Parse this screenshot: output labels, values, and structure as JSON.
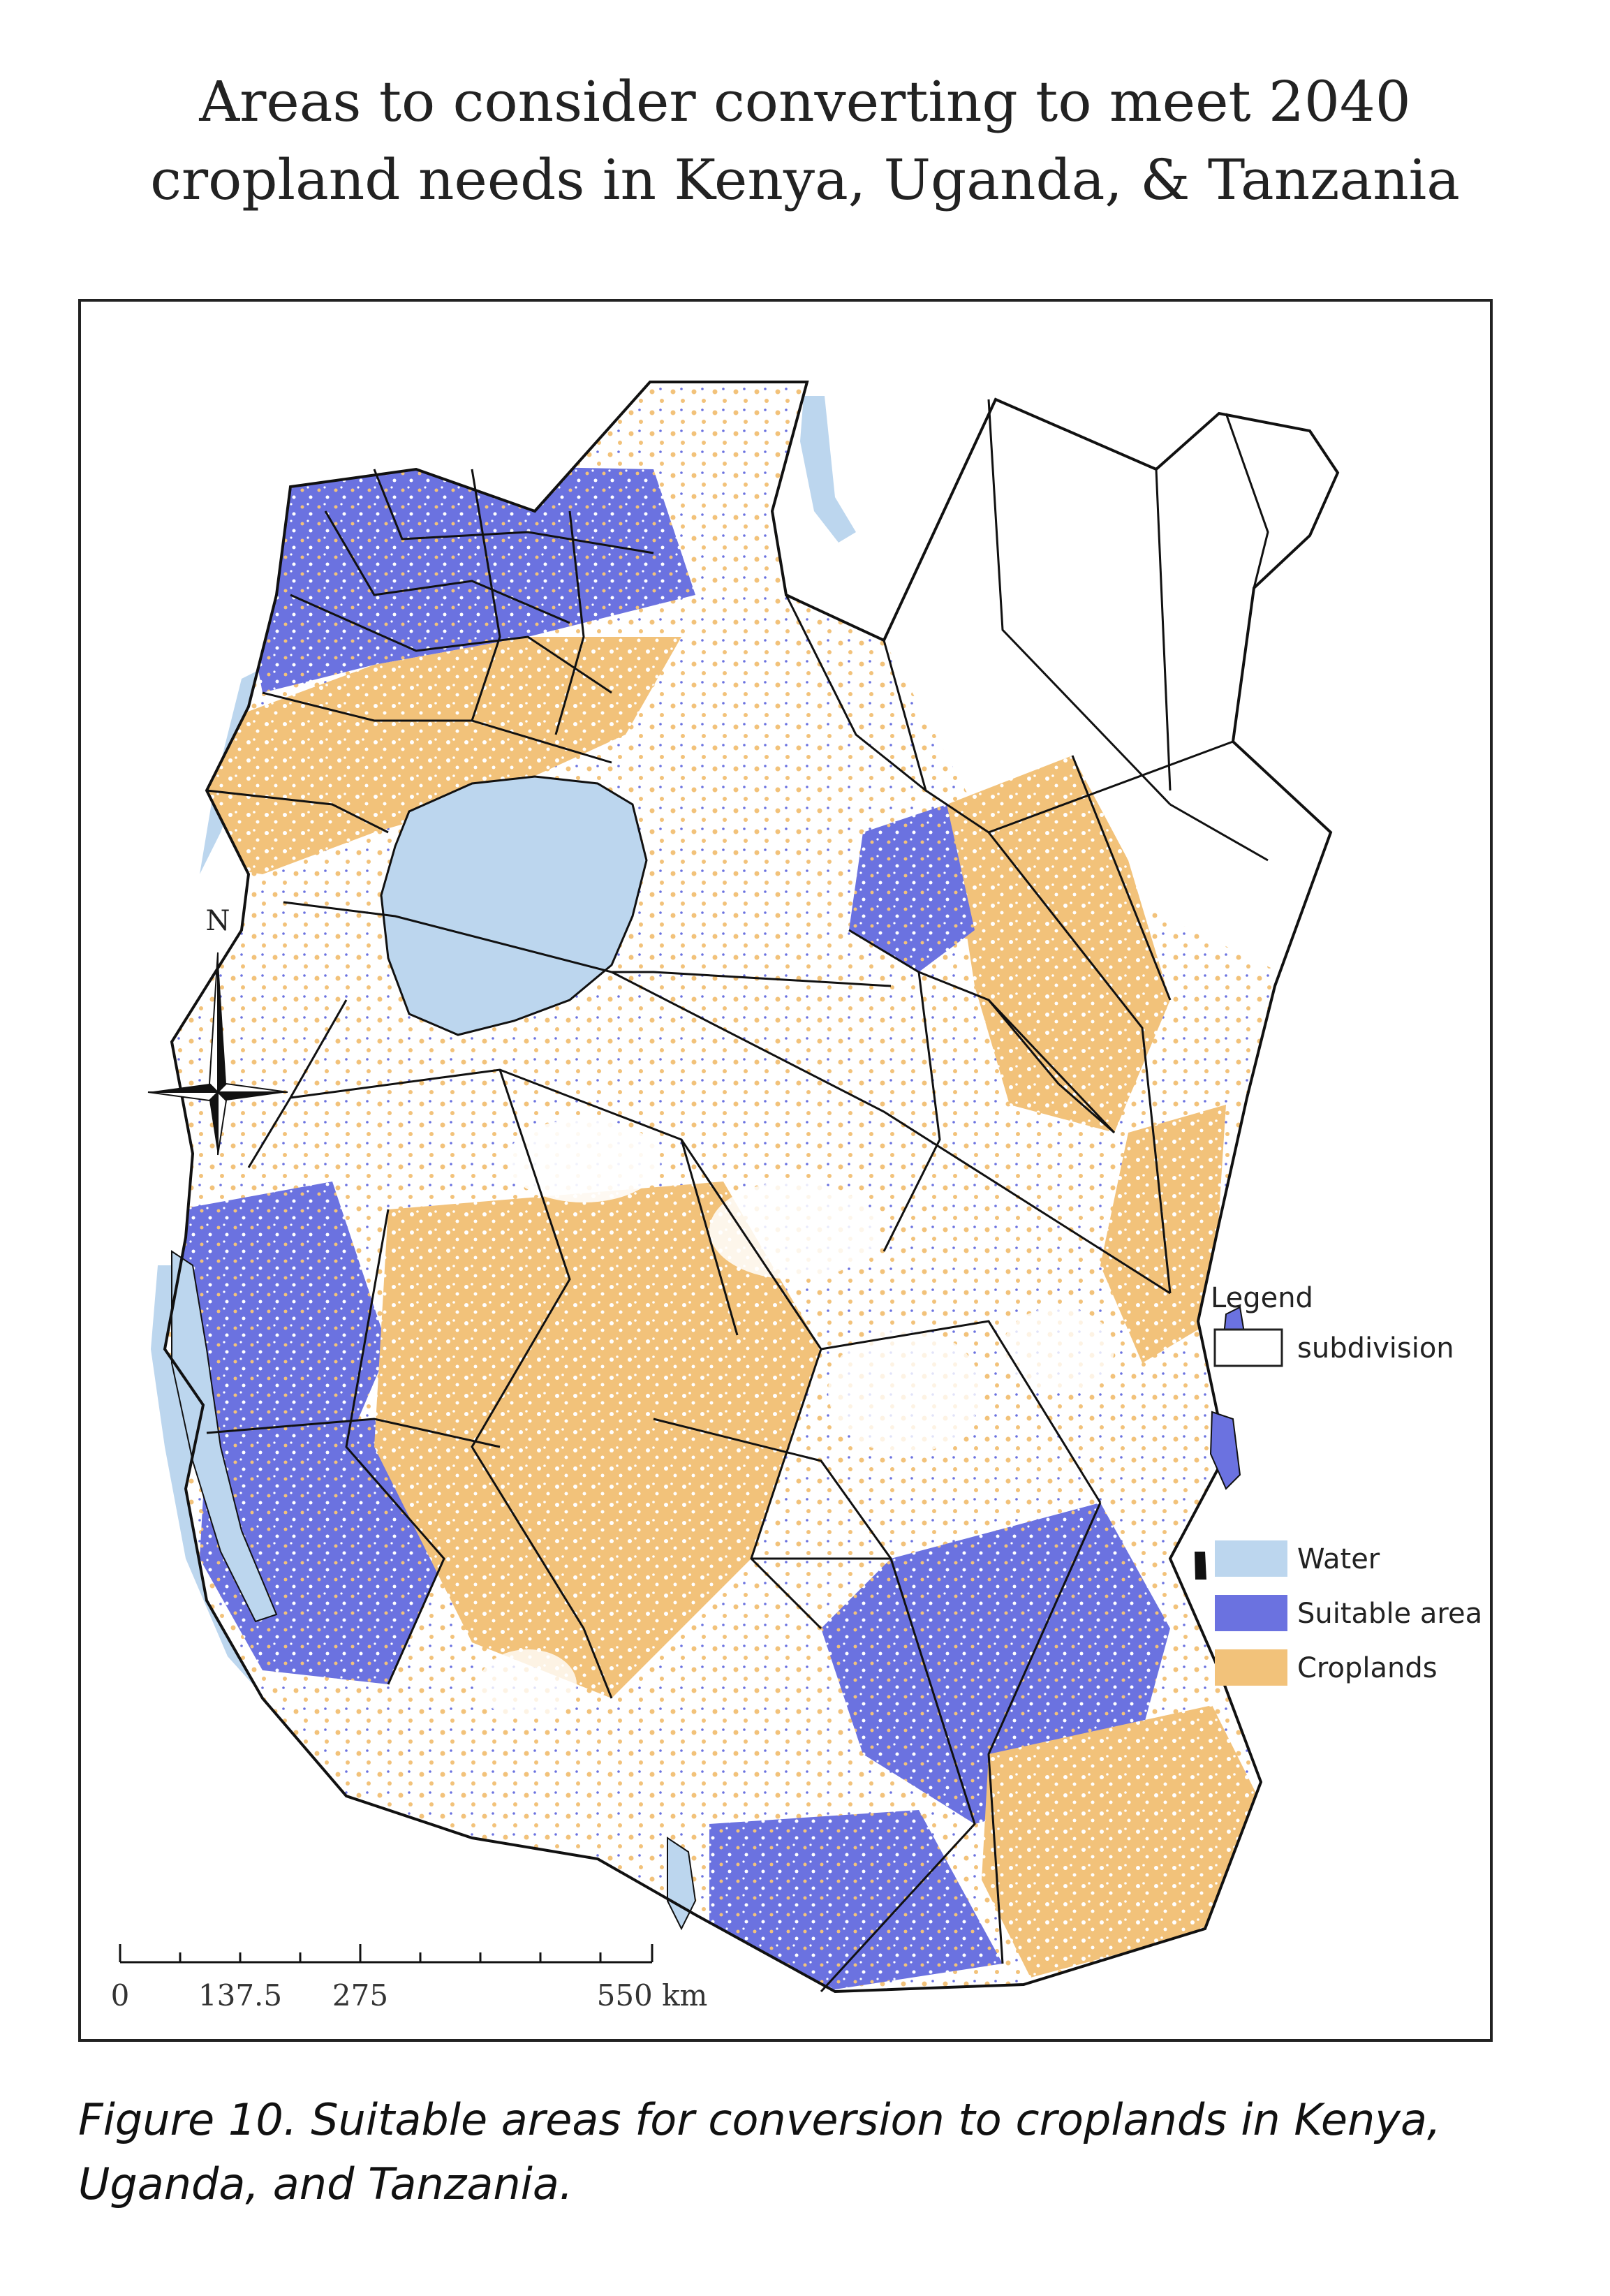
{
  "title": {
    "line1": "Areas to consider converting to meet 2040",
    "line2": "cropland needs in Kenya, Uganda, & Tanzania"
  },
  "legend": {
    "heading": "Legend",
    "items": [
      {
        "label": "subdivision",
        "color": "#ffffff",
        "border": "#222222"
      },
      {
        "label": "Water",
        "color": "#bcd6ee"
      },
      {
        "label": "Suitable area",
        "color": "#6b72e0"
      },
      {
        "label": "Croplands",
        "color": "#f2c27a"
      }
    ]
  },
  "north_arrow": {
    "label": "N"
  },
  "scale_bar": {
    "labels": [
      "0",
      "137.5",
      "275",
      "550 km"
    ]
  },
  "caption": {
    "line1": "Figure 10. Suitable areas for conversion to croplands in Kenya,",
    "line2": "Uganda, and Tanzania."
  },
  "colors": {
    "water": "#bcd6ee",
    "suitable": "#6b72e0",
    "cropland": "#f2c27a",
    "boundary": "#111111"
  }
}
